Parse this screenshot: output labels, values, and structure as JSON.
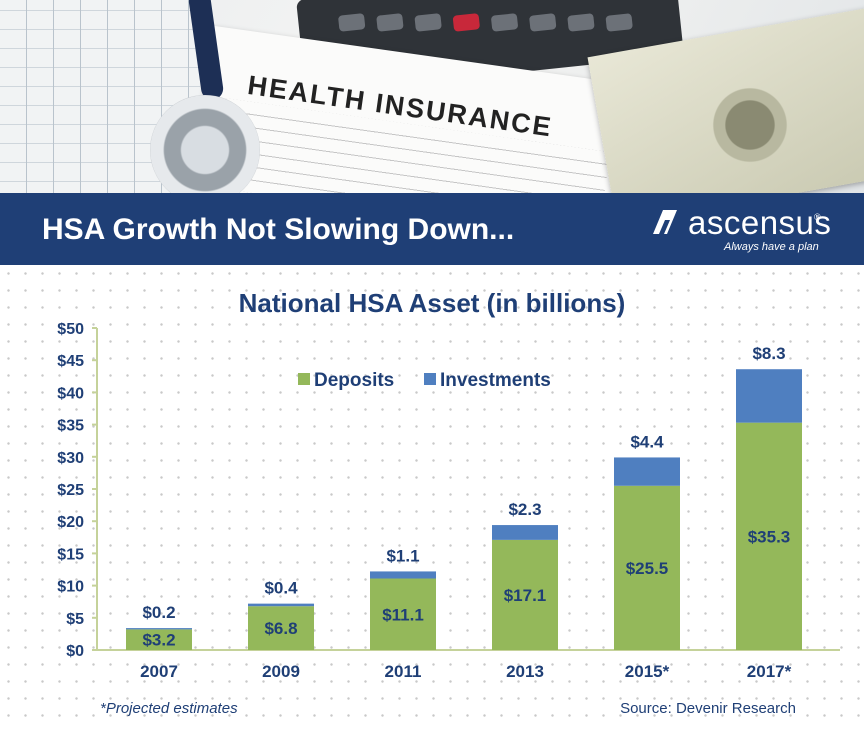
{
  "header": {
    "title": "HSA Growth Not Slowing Down...",
    "brand": {
      "name": "ascensus",
      "registered": "®",
      "tagline": "Always have a plan"
    },
    "photo": {
      "form_title": "HEALTH INSURANCE"
    }
  },
  "colors": {
    "navy": "#1f3f76",
    "deposits": "#94b85a",
    "investments": "#4f7fc0",
    "axis": "#c5d29a"
  },
  "chart_data": {
    "type": "bar",
    "stacked": true,
    "title": "National HSA Asset (in billions)",
    "xlabel": "",
    "ylabel": "",
    "categories": [
      "2007",
      "2009",
      "2011",
      "2013",
      "2015*",
      "2017*"
    ],
    "series": [
      {
        "name": "Deposits",
        "values": [
          3.2,
          6.8,
          11.1,
          17.1,
          25.5,
          35.3
        ],
        "labels": [
          "$3.2",
          "$6.8",
          "$11.1",
          "$17.1",
          "$25.5",
          "$35.3"
        ]
      },
      {
        "name": "Investments",
        "values": [
          0.2,
          0.4,
          1.1,
          2.3,
          4.4,
          8.3
        ],
        "labels": [
          "$0.2",
          "$0.4",
          "$1.1",
          "$2.3",
          "$4.4",
          "$8.3"
        ]
      }
    ],
    "yticks": [
      0,
      5,
      10,
      15,
      20,
      25,
      30,
      35,
      40,
      45,
      50
    ],
    "ytick_labels": [
      "$0",
      "$5",
      "$10",
      "$15",
      "$20",
      "$25",
      "$30",
      "$35",
      "$40",
      "$45",
      "$50"
    ],
    "ylim": [
      0,
      50
    ],
    "grid": false,
    "legend": "top-center"
  },
  "footer": {
    "note": "*Projected estimates",
    "source": "Source: Devenir Research"
  }
}
